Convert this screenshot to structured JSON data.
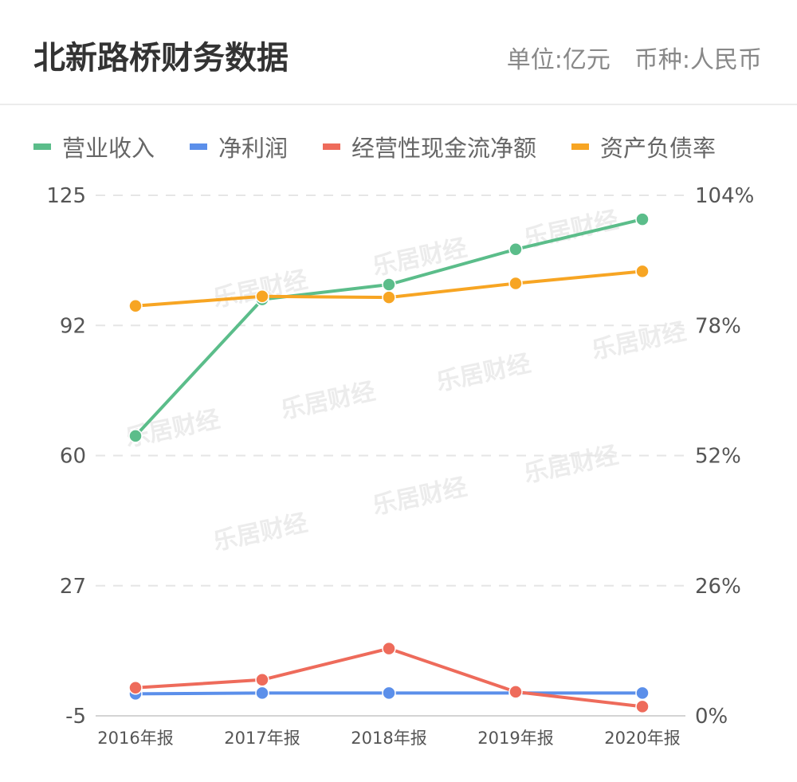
{
  "header": {
    "title": "北新路桥财务数据",
    "unit": "单位:亿元",
    "currency": "币种:人民币"
  },
  "watermark": "乐居财经",
  "chart_data": {
    "type": "line",
    "categories": [
      "2016年报",
      "2017年报",
      "2018年报",
      "2019年报",
      "2020年报"
    ],
    "y_left": {
      "ticks": [
        "125",
        "92",
        "60",
        "27",
        "-5"
      ],
      "range": [
        -5,
        125
      ]
    },
    "y_right": {
      "ticks": [
        "104%",
        "78%",
        "52%",
        "26%",
        "0%"
      ],
      "range": [
        0,
        104
      ]
    },
    "grid": true,
    "legend_position": "top-left",
    "series": [
      {
        "name": "营业收入",
        "axis": "left",
        "color": "#5bbd8a",
        "values": [
          64.9,
          99.0,
          102.7,
          111.5,
          119.0
        ]
      },
      {
        "name": "净利润",
        "axis": "left",
        "color": "#5b8fea",
        "values": [
          0.5,
          0.7,
          0.7,
          0.7,
          0.7
        ]
      },
      {
        "name": "经营性现金流净额",
        "axis": "left",
        "color": "#ee6b5b",
        "values": [
          2.0,
          4.0,
          11.8,
          1.0,
          -2.7
        ]
      },
      {
        "name": "资产负债率",
        "axis": "right",
        "color": "#f7a523",
        "values": [
          81.9,
          83.8,
          83.6,
          86.4,
          88.8
        ],
        "unit": "%"
      }
    ]
  }
}
